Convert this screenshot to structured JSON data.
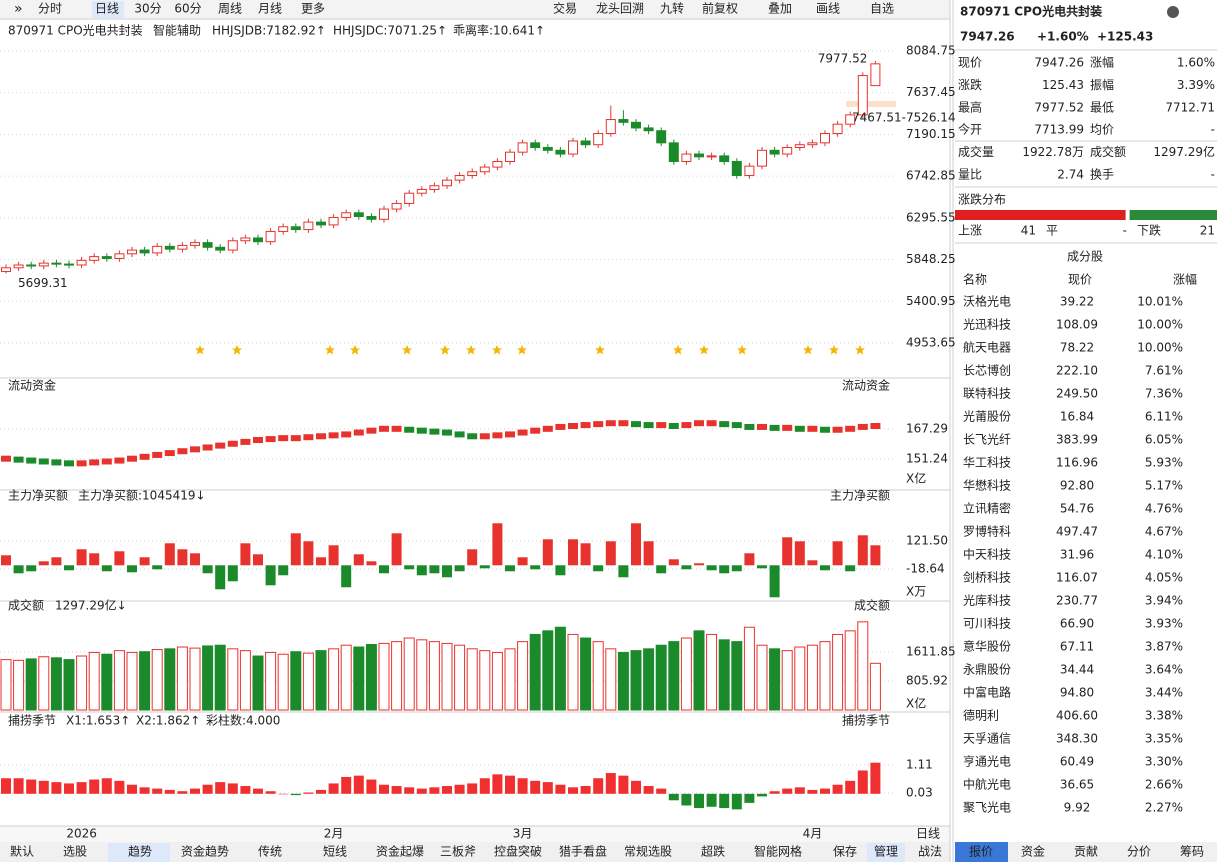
{
  "toolbar": {
    "left": [
      "分时",
      "日线",
      "30分",
      "60分",
      "周线",
      "月线",
      "更多"
    ],
    "right": [
      "交易",
      "龙头回溯",
      "九转",
      "前复权",
      "叠加",
      "画线",
      "自选"
    ]
  },
  "chart_header": {
    "title": "870971 CPO光电共封装",
    "assist": "智能辅助",
    "indicators": [
      {
        "text": "HHJSJDB:7182.92↑",
        "color": "#e08a00"
      },
      {
        "text": "HHJSJDC:7071.25↑",
        "color": "#e02020"
      },
      {
        "text": "乖离率:10.641↑",
        "color": "#e08a00"
      }
    ]
  },
  "chart_data": [
    {
      "type": "candlestick",
      "up_color": "#e8322e",
      "down_color": "#1a8a2a",
      "ylim": [
        4664,
        8396
      ],
      "yticks": [
        8084.75,
        7637.45,
        7190.15,
        6742.85,
        6295.55,
        5848.25,
        5400.95,
        4953.65
      ],
      "grid": true,
      "max_label": "7977.52",
      "min_label": "5699.31",
      "range_label": "7467.51-7526.14",
      "open": [
        5720,
        5760,
        5790,
        5780,
        5810,
        5800,
        5790,
        5840,
        5880,
        5860,
        5910,
        5950,
        5920,
        5990,
        5960,
        6000,
        6030,
        5980,
        5950,
        6050,
        6080,
        6040,
        6150,
        6200,
        6170,
        6250,
        6220,
        6300,
        6350,
        6310,
        6280,
        6390,
        6450,
        6560,
        6600,
        6640,
        6700,
        6750,
        6790,
        6840,
        6900,
        7000,
        7100,
        7050,
        7020,
        6980,
        7120,
        7080,
        7200,
        7350,
        7320,
        7260,
        7230,
        7100,
        6900,
        6980,
        6950,
        6960,
        6900,
        6750,
        6850,
        7020,
        6980,
        7050,
        7080,
        7100,
        7200,
        7300,
        7400,
        7713.99
      ],
      "close": [
        5760,
        5790,
        5780,
        5810,
        5800,
        5790,
        5840,
        5880,
        5860,
        5910,
        5950,
        5920,
        5990,
        5960,
        6000,
        6030,
        5980,
        5950,
        6050,
        6080,
        6040,
        6150,
        6200,
        6170,
        6250,
        6220,
        6300,
        6350,
        6310,
        6280,
        6390,
        6450,
        6560,
        6600,
        6640,
        6700,
        6750,
        6790,
        6840,
        6900,
        7000,
        7100,
        7050,
        7020,
        6980,
        7120,
        7080,
        7200,
        7350,
        7320,
        7260,
        7230,
        7100,
        6900,
        6980,
        6950,
        6960,
        6900,
        6750,
        6850,
        7020,
        6980,
        7050,
        7080,
        7100,
        7200,
        7300,
        7400,
        7821.83,
        7947.26
      ],
      "high": [
        5795,
        5825,
        5825,
        5845,
        5845,
        5835,
        5875,
        5915,
        5915,
        5945,
        5985,
        5985,
        6025,
        6025,
        6035,
        6065,
        6065,
        6015,
        6085,
        6115,
        6115,
        6185,
        6235,
        6235,
        6285,
        6285,
        6335,
        6385,
        6385,
        6345,
        6425,
        6485,
        6595,
        6635,
        6675,
        6735,
        6785,
        6825,
        6875,
        6935,
        7035,
        7135,
        7135,
        7085,
        7055,
        7155,
        7155,
        7235,
        7500,
        7450,
        7355,
        7295,
        7265,
        7135,
        7015,
        7015,
        6995,
        6995,
        6935,
        6885,
        7055,
        7055,
        7085,
        7115,
        7135,
        7235,
        7335,
        7435,
        7856,
        7977.52
      ],
      "low": [
        5699.31,
        5725,
        5745,
        5745,
        5765,
        5755,
        5755,
        5805,
        5825,
        5825,
        5875,
        5885,
        5885,
        5925,
        5925,
        5965,
        5945,
        5915,
        5915,
        6015,
        6005,
        6005,
        6115,
        6135,
        6135,
        6185,
        6185,
        6265,
        6275,
        6245,
        6245,
        6355,
        6415,
        6525,
        6565,
        6605,
        6665,
        6715,
        6755,
        6805,
        6865,
        6965,
        7015,
        6985,
        6945,
        6945,
        7045,
        7045,
        7165,
        7285,
        7225,
        7195,
        7065,
        6865,
        6865,
        6915,
        6915,
        6865,
        6715,
        6715,
        6815,
        6945,
        6945,
        7015,
        7045,
        7065,
        7165,
        7265,
        7365,
        7712.71
      ]
    },
    {
      "type": "block",
      "title": "流动资金",
      "unit": "X亿",
      "ylim": [
        137.3,
        185.5
      ],
      "yticks": [
        167.29,
        151.24
      ],
      "grid": true,
      "up_color": "#e8322e",
      "down_color": "#1a8a2a",
      "values": [
        153,
        152.5,
        152,
        151.5,
        151,
        150.5,
        150.5,
        151,
        151.5,
        152,
        153,
        154,
        155,
        156,
        157,
        158,
        159,
        160,
        161,
        162,
        163,
        163.5,
        164,
        164,
        164.5,
        165,
        165.5,
        166,
        167,
        168,
        169,
        169,
        168.5,
        168,
        167.5,
        167,
        166,
        165,
        165,
        165.5,
        166,
        167,
        168,
        169,
        170,
        170.5,
        171,
        171.5,
        172,
        172,
        171.5,
        171,
        171,
        170.5,
        171,
        172,
        172,
        171.5,
        171,
        170,
        170,
        169.5,
        169.5,
        169,
        169,
        168.5,
        168.5,
        169,
        170,
        170.5
      ]
    },
    {
      "type": "bar",
      "title": "主力净买额",
      "subtitle": "主力净买额:1045419↓",
      "unit": "X万",
      "ylim": [
        -163.6,
        301.5
      ],
      "yticks": [
        {
          "value": 121.5,
          "label": "121.50"
        },
        -18.64
      ],
      "grid": true,
      "up_color": "#e8322e",
      "down_color": "#1a8a2a",
      "values": [
        50,
        -40,
        -30,
        20,
        40,
        -25,
        80,
        60,
        -30,
        70,
        -35,
        40,
        -20,
        110,
        80,
        60,
        -40,
        -120,
        -80,
        110,
        55,
        -100,
        -50,
        160,
        120,
        40,
        100,
        -110,
        55,
        20,
        -40,
        160,
        -20,
        -50,
        -40,
        -60,
        -30,
        80,
        -15,
        210,
        -30,
        40,
        -20,
        130,
        -50,
        130,
        110,
        -30,
        120,
        -60,
        210,
        120,
        -40,
        30,
        -20,
        10,
        -25,
        -40,
        -30,
        60,
        -15,
        -160,
        140,
        120,
        25,
        -25,
        120,
        -30,
        150,
        100
      ]
    },
    {
      "type": "volume",
      "title": "成交额",
      "subtitle": "1297.29亿↓",
      "unit": "X亿",
      "ylim": [
        0,
        2640
      ],
      "yticks": [
        1611.85,
        805.92
      ],
      "grid": true,
      "up_color": "#e8322e",
      "down_color": "#1a8a2a",
      "values": [
        1400,
        1380,
        1420,
        1480,
        1450,
        1400,
        1500,
        1600,
        1550,
        1650,
        1600,
        1620,
        1680,
        1700,
        1750,
        1720,
        1780,
        1800,
        1700,
        1650,
        1500,
        1600,
        1550,
        1620,
        1580,
        1650,
        1700,
        1800,
        1750,
        1820,
        1850,
        1900,
        2000,
        1950,
        1900,
        1850,
        1800,
        1700,
        1650,
        1600,
        1700,
        1900,
        2100,
        2200,
        2300,
        2100,
        2000,
        1900,
        1700,
        1600,
        1650,
        1700,
        1800,
        1900,
        2000,
        2200,
        2100,
        1950,
        1900,
        2300,
        1800,
        1700,
        1650,
        1750,
        1800,
        1900,
        2100,
        2200,
        2450,
        1297.29
      ]
    },
    {
      "type": "bar",
      "title": "捕捞季节",
      "indicators": [
        {
          "text": "X1:1.653↑",
          "color": "#e08a00"
        },
        {
          "text": "X2:1.862↑",
          "color": "#d0209a"
        },
        {
          "text": "彩柱数:4.000",
          "color": "#2a9a2a"
        }
      ],
      "ylim": [
        -1.01,
        2.46
      ],
      "yticks": [
        1.11,
        0.03
      ],
      "grid": true,
      "up_color": "#f03030",
      "down_color": "#1a8a2a",
      "values": [
        0.6,
        0.6,
        0.55,
        0.5,
        0.45,
        0.4,
        0.45,
        0.55,
        0.6,
        0.5,
        0.35,
        0.25,
        0.2,
        0.15,
        0.1,
        0.2,
        0.35,
        0.45,
        0.4,
        0.3,
        0.2,
        0.1,
        0.0,
        -0.05,
        0.05,
        0.15,
        0.4,
        0.65,
        0.7,
        0.55,
        0.35,
        0.3,
        0.25,
        0.2,
        0.25,
        0.3,
        0.35,
        0.4,
        0.6,
        0.75,
        0.7,
        0.6,
        0.5,
        0.45,
        0.35,
        0.25,
        0.3,
        0.6,
        0.8,
        0.7,
        0.5,
        0.3,
        0.2,
        -0.25,
        -0.45,
        -0.55,
        -0.5,
        -0.55,
        -0.6,
        -0.35,
        -0.1,
        0.1,
        0.2,
        0.25,
        0.15,
        0.2,
        0.35,
        0.5,
        0.9,
        1.2
      ],
      "categories": [
        null,
        null,
        null,
        null,
        null,
        null,
        "2026",
        null,
        null,
        null,
        null,
        null,
        null,
        null,
        null,
        null,
        null,
        null,
        null,
        null,
        null,
        null,
        null,
        null,
        null,
        null,
        "2月",
        null,
        null,
        null,
        null,
        null,
        null,
        null,
        null,
        null,
        null,
        null,
        null,
        null,
        null,
        "3月",
        null,
        null,
        null,
        null,
        null,
        null,
        null,
        null,
        null,
        null,
        null,
        null,
        null,
        null,
        null,
        null,
        null,
        null,
        null,
        null,
        null,
        null,
        "4月",
        null,
        null,
        null,
        null,
        null
      ]
    }
  ],
  "period_label": "日线",
  "bottom_tabs": {
    "left": [
      "默认",
      "选股",
      "趋势",
      "资金趋势",
      "传统",
      "短线",
      "资金起爆",
      "三板斧",
      "控盘突破",
      "猎手看盘",
      "常规选股",
      "超跌",
      "智能网格"
    ],
    "right": [
      "保存",
      "管理",
      "战法"
    ]
  },
  "quote": {
    "title": "870971 CPO光电共封装",
    "price": "7947.26",
    "pct": "+1.60%",
    "chg": "+125.43",
    "rows": [
      {
        "l1": "现价",
        "v1": "7947.26",
        "c1": "#e8322e",
        "l2": "涨幅",
        "v2": "1.60%",
        "c2": "#e8322e"
      },
      {
        "l1": "涨跌",
        "v1": "125.43",
        "c1": "#e8322e",
        "l2": "振幅",
        "v2": "3.39%",
        "c2": "#222"
      },
      {
        "l1": "最高",
        "v1": "7977.52",
        "c1": "#e8322e",
        "l2": "最低",
        "v2": "7712.71",
        "c2": "#1a8a2a"
      },
      {
        "l1": "今开",
        "v1": "7713.99",
        "c1": "#1a8a2a",
        "l2": "均价",
        "v2": "-",
        "c2": "#222"
      },
      {
        "l1": "成交量",
        "v1": "1922.78万",
        "c1": "#222",
        "l2": "成交额",
        "v2": "1297.29亿",
        "c2": "#222"
      },
      {
        "l1": "量比",
        "v1": "2.74",
        "c1": "#222",
        "l2": "换手",
        "v2": "-",
        "c2": "#222"
      }
    ]
  },
  "distribution": {
    "title": "涨跌分布",
    "up_label": "上涨",
    "up": 41,
    "flat_label": "平",
    "flat": "-",
    "down_label": "下跌",
    "down": 21
  },
  "constituents": {
    "title": "成分股",
    "headers": [
      "名称",
      "现价",
      "涨幅"
    ],
    "rows": [
      {
        "name": "沃格光电",
        "price": "39.22",
        "change": "10.01%",
        "color": "#e0208a"
      },
      {
        "name": "光迅科技",
        "price": "108.09",
        "change": "10.00%",
        "color": "#222"
      },
      {
        "name": "航天电器",
        "price": "78.22",
        "change": "10.00%",
        "color": "#222"
      },
      {
        "name": "长芯博创",
        "price": "222.10",
        "change": "7.61%",
        "color": "#2a6fd6"
      },
      {
        "name": "联特科技",
        "price": "249.50",
        "change": "7.36%",
        "color": "#222"
      },
      {
        "name": "光莆股份",
        "price": "16.84",
        "change": "6.11%",
        "color": "#222"
      },
      {
        "name": "长飞光纤",
        "price": "383.99",
        "change": "6.05%",
        "color": "#2a6fd6"
      },
      {
        "name": "华工科技",
        "price": "116.96",
        "change": "5.93%",
        "color": "#222"
      },
      {
        "name": "华懋科技",
        "price": "92.80",
        "change": "5.17%",
        "color": "#222"
      },
      {
        "name": "立讯精密",
        "price": "54.76",
        "change": "4.76%",
        "color": "#222"
      },
      {
        "name": "罗博特科",
        "price": "497.47",
        "change": "4.67%",
        "color": "#2a6fd6"
      },
      {
        "name": "中天科技",
        "price": "31.96",
        "change": "4.10%",
        "color": "#222"
      },
      {
        "name": "剑桥科技",
        "price": "116.07",
        "change": "4.05%",
        "color": "#222"
      },
      {
        "name": "光库科技",
        "price": "230.77",
        "change": "3.94%",
        "color": "#222"
      },
      {
        "name": "可川科技",
        "price": "66.90",
        "change": "3.93%",
        "color": "#2a6fd6"
      },
      {
        "name": "意华股份",
        "price": "67.11",
        "change": "3.87%",
        "color": "#222"
      },
      {
        "name": "永鼎股份",
        "price": "34.44",
        "change": "3.64%",
        "color": "#e0208a"
      },
      {
        "name": "中富电路",
        "price": "94.80",
        "change": "3.44%",
        "color": "#222"
      },
      {
        "name": "德明利",
        "price": "406.60",
        "change": "3.38%",
        "color": "#2a6fd6"
      },
      {
        "name": "天孚通信",
        "price": "348.30",
        "change": "3.35%",
        "color": "#222"
      },
      {
        "name": "亨通光电",
        "price": "60.49",
        "change": "3.30%",
        "color": "#222"
      },
      {
        "name": "中航光电",
        "price": "36.65",
        "change": "2.66%",
        "color": "#222"
      },
      {
        "name": "聚飞光电",
        "price": "9.92",
        "change": "2.27%",
        "color": "#222"
      }
    ]
  },
  "info_tabs": [
    "报价",
    "资金",
    "贡献",
    "分价",
    "筹码"
  ]
}
